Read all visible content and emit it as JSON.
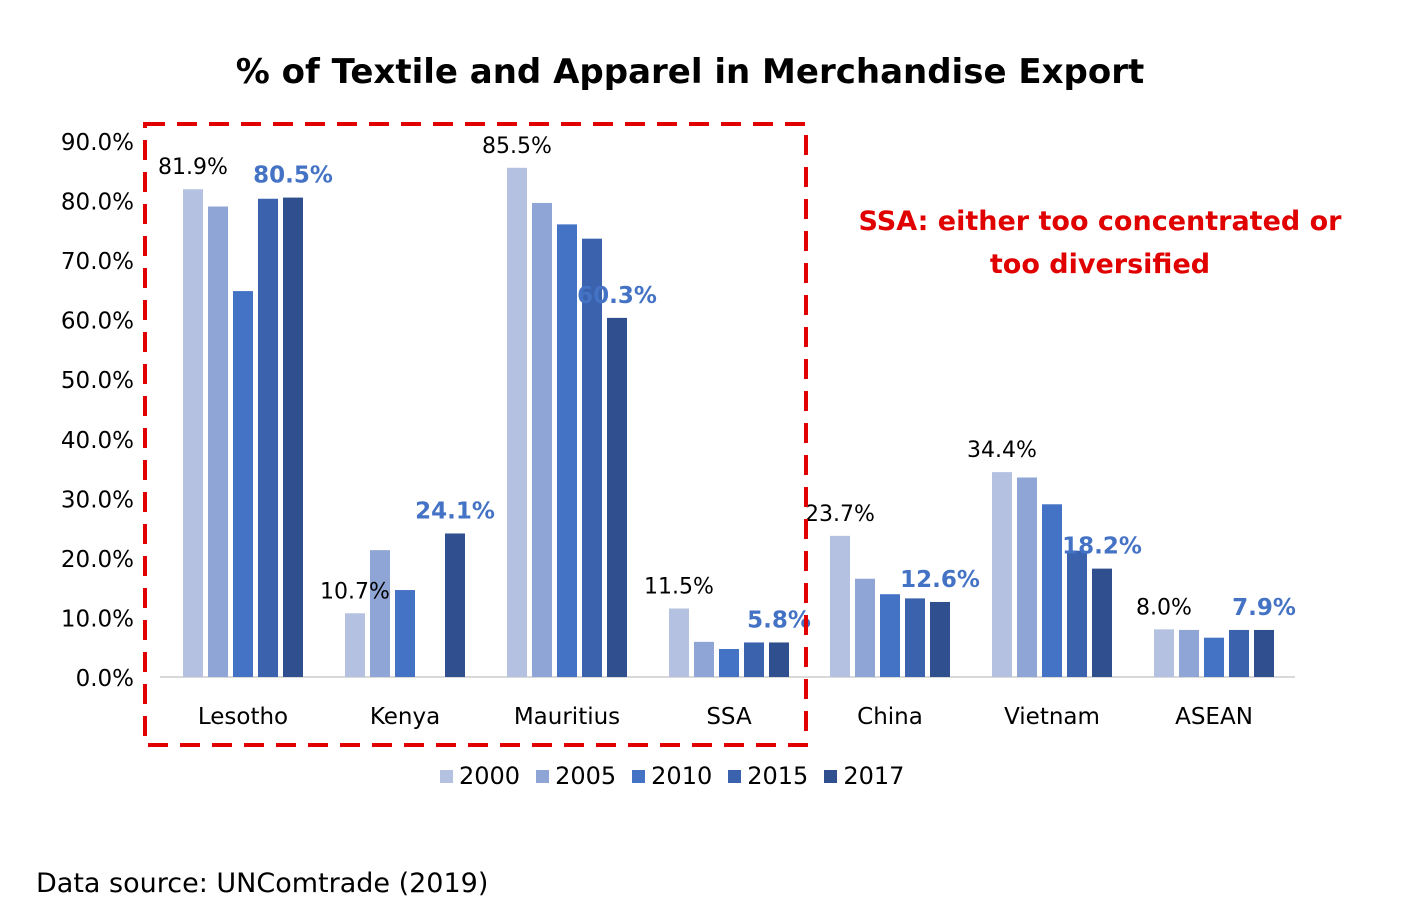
{
  "chart_data": {
    "type": "bar",
    "title": "% of Textile and Apparel in Merchandise Export",
    "categories": [
      "Lesotho",
      "Kenya",
      "Mauritius",
      "SSA",
      "China",
      "Vietnam",
      "ASEAN"
    ],
    "ylim": [
      0,
      90
    ],
    "yticks": [
      "0.0%",
      "10.0%",
      "20.0%",
      "30.0%",
      "40.0%",
      "50.0%",
      "60.0%",
      "70.0%",
      "80.0%",
      "90.0%"
    ],
    "series": [
      {
        "name": "2000",
        "color": "#b4c1e1",
        "values": [
          81.9,
          10.7,
          85.5,
          11.5,
          23.7,
          34.4,
          8.0
        ]
      },
      {
        "name": "2005",
        "color": "#8fa5d5",
        "values": [
          79.0,
          21.3,
          79.6,
          5.9,
          16.5,
          33.5,
          7.9
        ]
      },
      {
        "name": "2010",
        "color": "#4472c4",
        "values": [
          64.8,
          14.6,
          76.0,
          4.7,
          13.9,
          29.0,
          6.6
        ]
      },
      {
        "name": "2015",
        "color": "#3a62ad",
        "values": [
          80.3,
          0,
          73.6,
          5.8,
          13.2,
          21.2,
          7.9
        ]
      },
      {
        "name": "2017",
        "color": "#2f4f8f",
        "values": [
          80.5,
          24.1,
          60.3,
          5.8,
          12.6,
          18.2,
          7.9
        ]
      }
    ],
    "data_labels": [
      {
        "category": "Lesotho",
        "series": "2000",
        "text": "81.9%",
        "style": "plain"
      },
      {
        "category": "Lesotho",
        "series": "2017",
        "text": "80.5%",
        "style": "highlight"
      },
      {
        "category": "Kenya",
        "series": "2000",
        "text": "10.7%",
        "style": "plain"
      },
      {
        "category": "Kenya",
        "series": "2017",
        "text": "24.1%",
        "style": "highlight"
      },
      {
        "category": "Mauritius",
        "series": "2000",
        "text": "85.5%",
        "style": "plain"
      },
      {
        "category": "Mauritius",
        "series": "2017",
        "text": "60.3%",
        "style": "highlight"
      },
      {
        "category": "SSA",
        "series": "2000",
        "text": "11.5%",
        "style": "plain"
      },
      {
        "category": "SSA",
        "series": "2017",
        "text": "5.8%",
        "style": "highlight"
      },
      {
        "category": "China",
        "series": "2000",
        "text": "23.7%",
        "style": "plain"
      },
      {
        "category": "China",
        "series": "2017",
        "text": "12.6%",
        "style": "highlight"
      },
      {
        "category": "Vietnam",
        "series": "2000",
        "text": "34.4%",
        "style": "plain"
      },
      {
        "category": "Vietnam",
        "series": "2017",
        "text": "18.2%",
        "style": "highlight"
      },
      {
        "category": "ASEAN",
        "series": "2000",
        "text": "8.0%",
        "style": "plain"
      },
      {
        "category": "ASEAN",
        "series": "2017",
        "text": "7.9%",
        "style": "highlight"
      }
    ],
    "annotation": {
      "line1": "SSA: either too concentrated or",
      "line2": "too diversified",
      "color": "#e00000"
    },
    "highlight_box": {
      "covers": [
        "Lesotho",
        "Kenya",
        "Mauritius",
        "SSA"
      ],
      "color": "#e00000",
      "style": "dashed"
    },
    "source": "Data source: UNComtrade (2019)",
    "legend_position": "bottom",
    "label_highlight_color": "#4472c4"
  }
}
